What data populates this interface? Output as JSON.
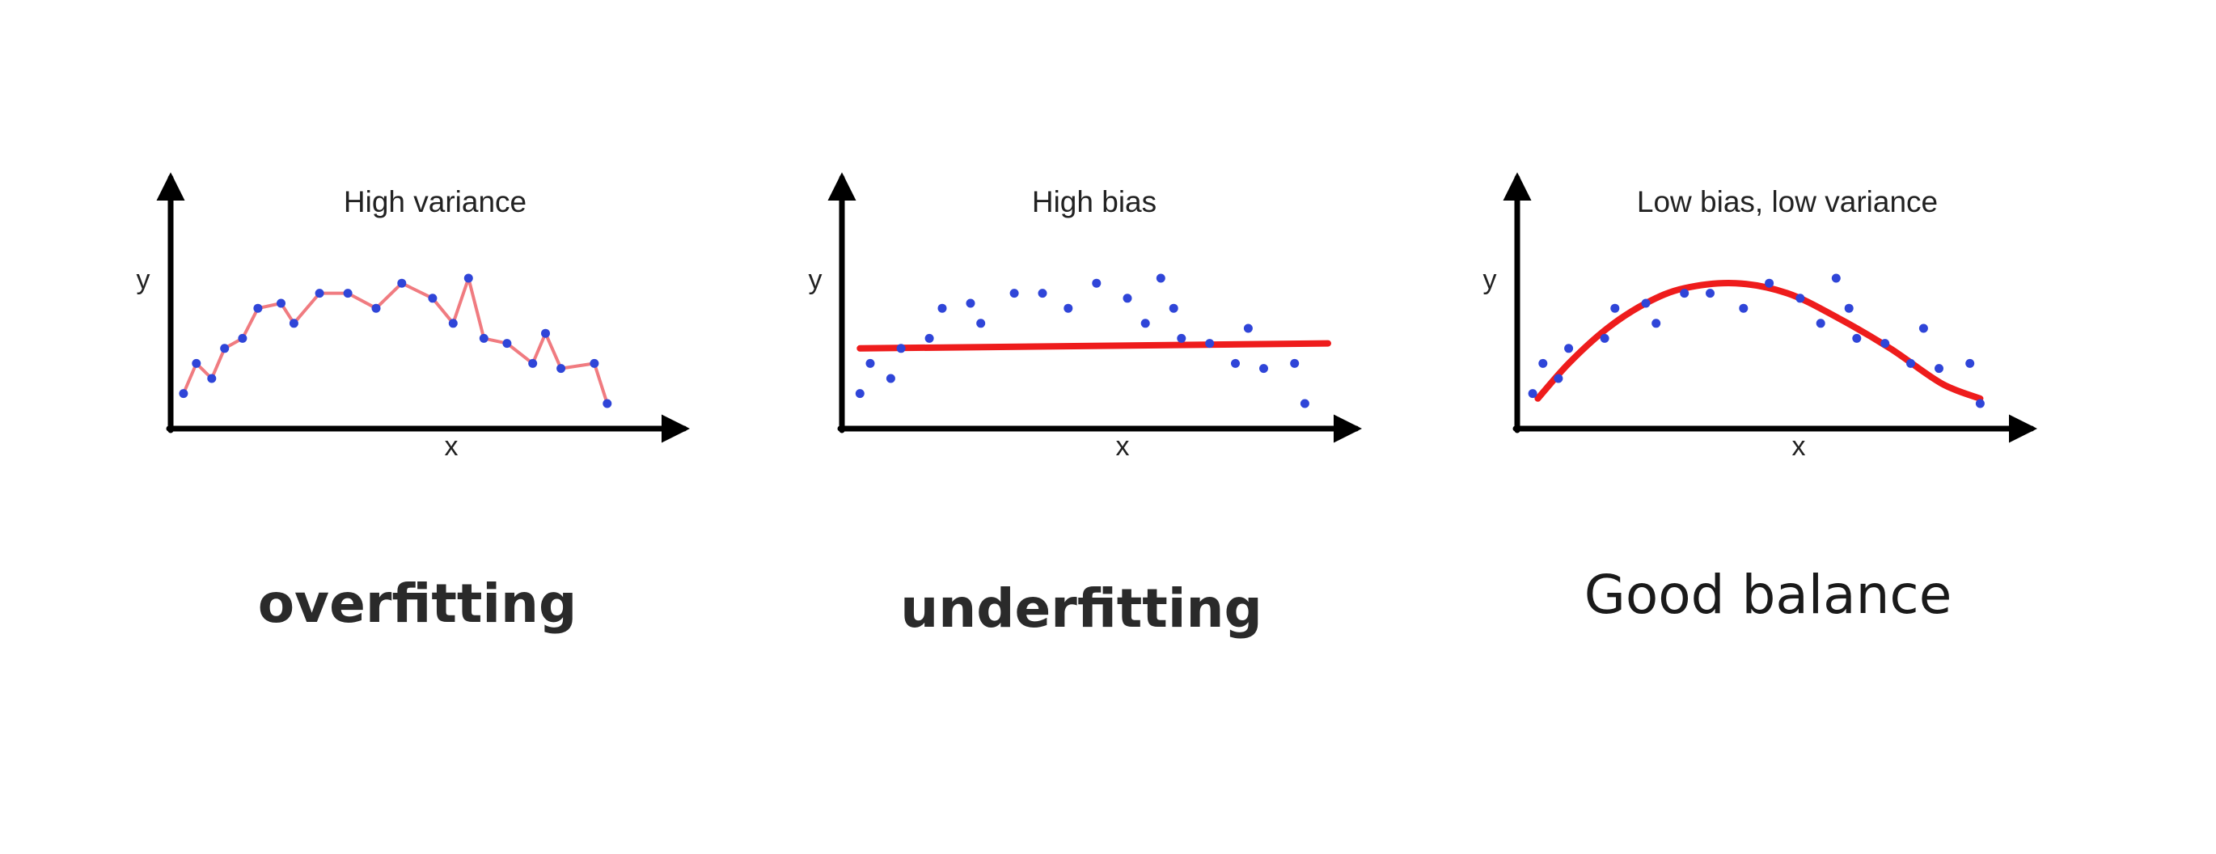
{
  "colors": {
    "axis": "#000000",
    "point": "#2f45d8",
    "fit_line": "#ee1c1c",
    "overfit_line": "#f07b80"
  },
  "chart_data": [
    {
      "type": "scatter",
      "title": "High variance",
      "xlabel": "x",
      "ylabel": "y",
      "caption": "overfitting",
      "xlim": [
        0,
        20
      ],
      "ylim": [
        0,
        5
      ],
      "grid": false,
      "fit": "interpolating",
      "points": [
        {
          "x": 0.5,
          "y": 0.7
        },
        {
          "x": 1.0,
          "y": 1.3
        },
        {
          "x": 1.6,
          "y": 1.0
        },
        {
          "x": 2.1,
          "y": 1.6
        },
        {
          "x": 2.8,
          "y": 1.8
        },
        {
          "x": 3.4,
          "y": 2.4
        },
        {
          "x": 4.3,
          "y": 2.5
        },
        {
          "x": 4.8,
          "y": 2.1
        },
        {
          "x": 5.8,
          "y": 2.7
        },
        {
          "x": 6.9,
          "y": 2.7
        },
        {
          "x": 8.0,
          "y": 2.4
        },
        {
          "x": 9.0,
          "y": 2.9
        },
        {
          "x": 10.2,
          "y": 2.6
        },
        {
          "x": 11.0,
          "y": 2.1
        },
        {
          "x": 11.6,
          "y": 3.0
        },
        {
          "x": 12.2,
          "y": 1.8
        },
        {
          "x": 13.1,
          "y": 1.7
        },
        {
          "x": 14.1,
          "y": 1.3
        },
        {
          "x": 14.6,
          "y": 1.9
        },
        {
          "x": 15.2,
          "y": 1.2
        },
        {
          "x": 16.5,
          "y": 1.3
        },
        {
          "x": 17.0,
          "y": 0.5
        }
      ]
    },
    {
      "type": "scatter",
      "title": "High bias",
      "xlabel": "x",
      "ylabel": "y",
      "caption": "underfitting",
      "xlim": [
        0,
        20
      ],
      "ylim": [
        0,
        5
      ],
      "grid": false,
      "fit": "linear",
      "fit_line": [
        {
          "x": 0.7,
          "y": 1.6
        },
        {
          "x": 18.9,
          "y": 1.7
        }
      ],
      "points": [
        {
          "x": 0.7,
          "y": 0.7
        },
        {
          "x": 1.1,
          "y": 1.3
        },
        {
          "x": 1.9,
          "y": 1.0
        },
        {
          "x": 2.3,
          "y": 1.6
        },
        {
          "x": 3.4,
          "y": 1.8
        },
        {
          "x": 3.9,
          "y": 2.4
        },
        {
          "x": 5.0,
          "y": 2.5
        },
        {
          "x": 5.4,
          "y": 2.1
        },
        {
          "x": 6.7,
          "y": 2.7
        },
        {
          "x": 7.8,
          "y": 2.7
        },
        {
          "x": 8.8,
          "y": 2.4
        },
        {
          "x": 9.9,
          "y": 2.9
        },
        {
          "x": 11.1,
          "y": 2.6
        },
        {
          "x": 11.8,
          "y": 2.1
        },
        {
          "x": 12.4,
          "y": 3.0
        },
        {
          "x": 12.9,
          "y": 2.4
        },
        {
          "x": 13.2,
          "y": 1.8
        },
        {
          "x": 14.3,
          "y": 1.7
        },
        {
          "x": 15.3,
          "y": 1.3
        },
        {
          "x": 15.8,
          "y": 2.0
        },
        {
          "x": 16.4,
          "y": 1.2
        },
        {
          "x": 17.6,
          "y": 1.3
        },
        {
          "x": 18.0,
          "y": 0.5
        }
      ]
    },
    {
      "type": "scatter",
      "title": "Low bias, low variance",
      "xlabel": "x",
      "ylabel": "y",
      "caption": "Good balance",
      "xlim": [
        0,
        20
      ],
      "ylim": [
        0,
        5
      ],
      "grid": false,
      "fit": "quadratic",
      "fit_line": [
        {
          "x": 0.8,
          "y": 0.6
        },
        {
          "x": 2.0,
          "y": 1.3
        },
        {
          "x": 3.5,
          "y": 2.0
        },
        {
          "x": 5.0,
          "y": 2.5
        },
        {
          "x": 6.5,
          "y": 2.8
        },
        {
          "x": 8.5,
          "y": 2.9
        },
        {
          "x": 10.5,
          "y": 2.7
        },
        {
          "x": 12.5,
          "y": 2.2
        },
        {
          "x": 14.5,
          "y": 1.6
        },
        {
          "x": 16.5,
          "y": 0.9
        },
        {
          "x": 18.0,
          "y": 0.6
        }
      ],
      "points": [
        {
          "x": 0.6,
          "y": 0.7
        },
        {
          "x": 1.0,
          "y": 1.3
        },
        {
          "x": 1.6,
          "y": 1.0
        },
        {
          "x": 2.0,
          "y": 1.6
        },
        {
          "x": 3.4,
          "y": 1.8
        },
        {
          "x": 3.8,
          "y": 2.4
        },
        {
          "x": 5.0,
          "y": 2.5
        },
        {
          "x": 5.4,
          "y": 2.1
        },
        {
          "x": 6.5,
          "y": 2.7
        },
        {
          "x": 7.5,
          "y": 2.7
        },
        {
          "x": 8.8,
          "y": 2.4
        },
        {
          "x": 9.8,
          "y": 2.9
        },
        {
          "x": 11.0,
          "y": 2.6
        },
        {
          "x": 11.8,
          "y": 2.1
        },
        {
          "x": 12.4,
          "y": 3.0
        },
        {
          "x": 12.9,
          "y": 2.4
        },
        {
          "x": 13.2,
          "y": 1.8
        },
        {
          "x": 14.3,
          "y": 1.7
        },
        {
          "x": 15.3,
          "y": 1.3
        },
        {
          "x": 15.8,
          "y": 2.0
        },
        {
          "x": 16.4,
          "y": 1.2
        },
        {
          "x": 17.6,
          "y": 1.3
        },
        {
          "x": 18.0,
          "y": 0.5
        }
      ]
    }
  ]
}
